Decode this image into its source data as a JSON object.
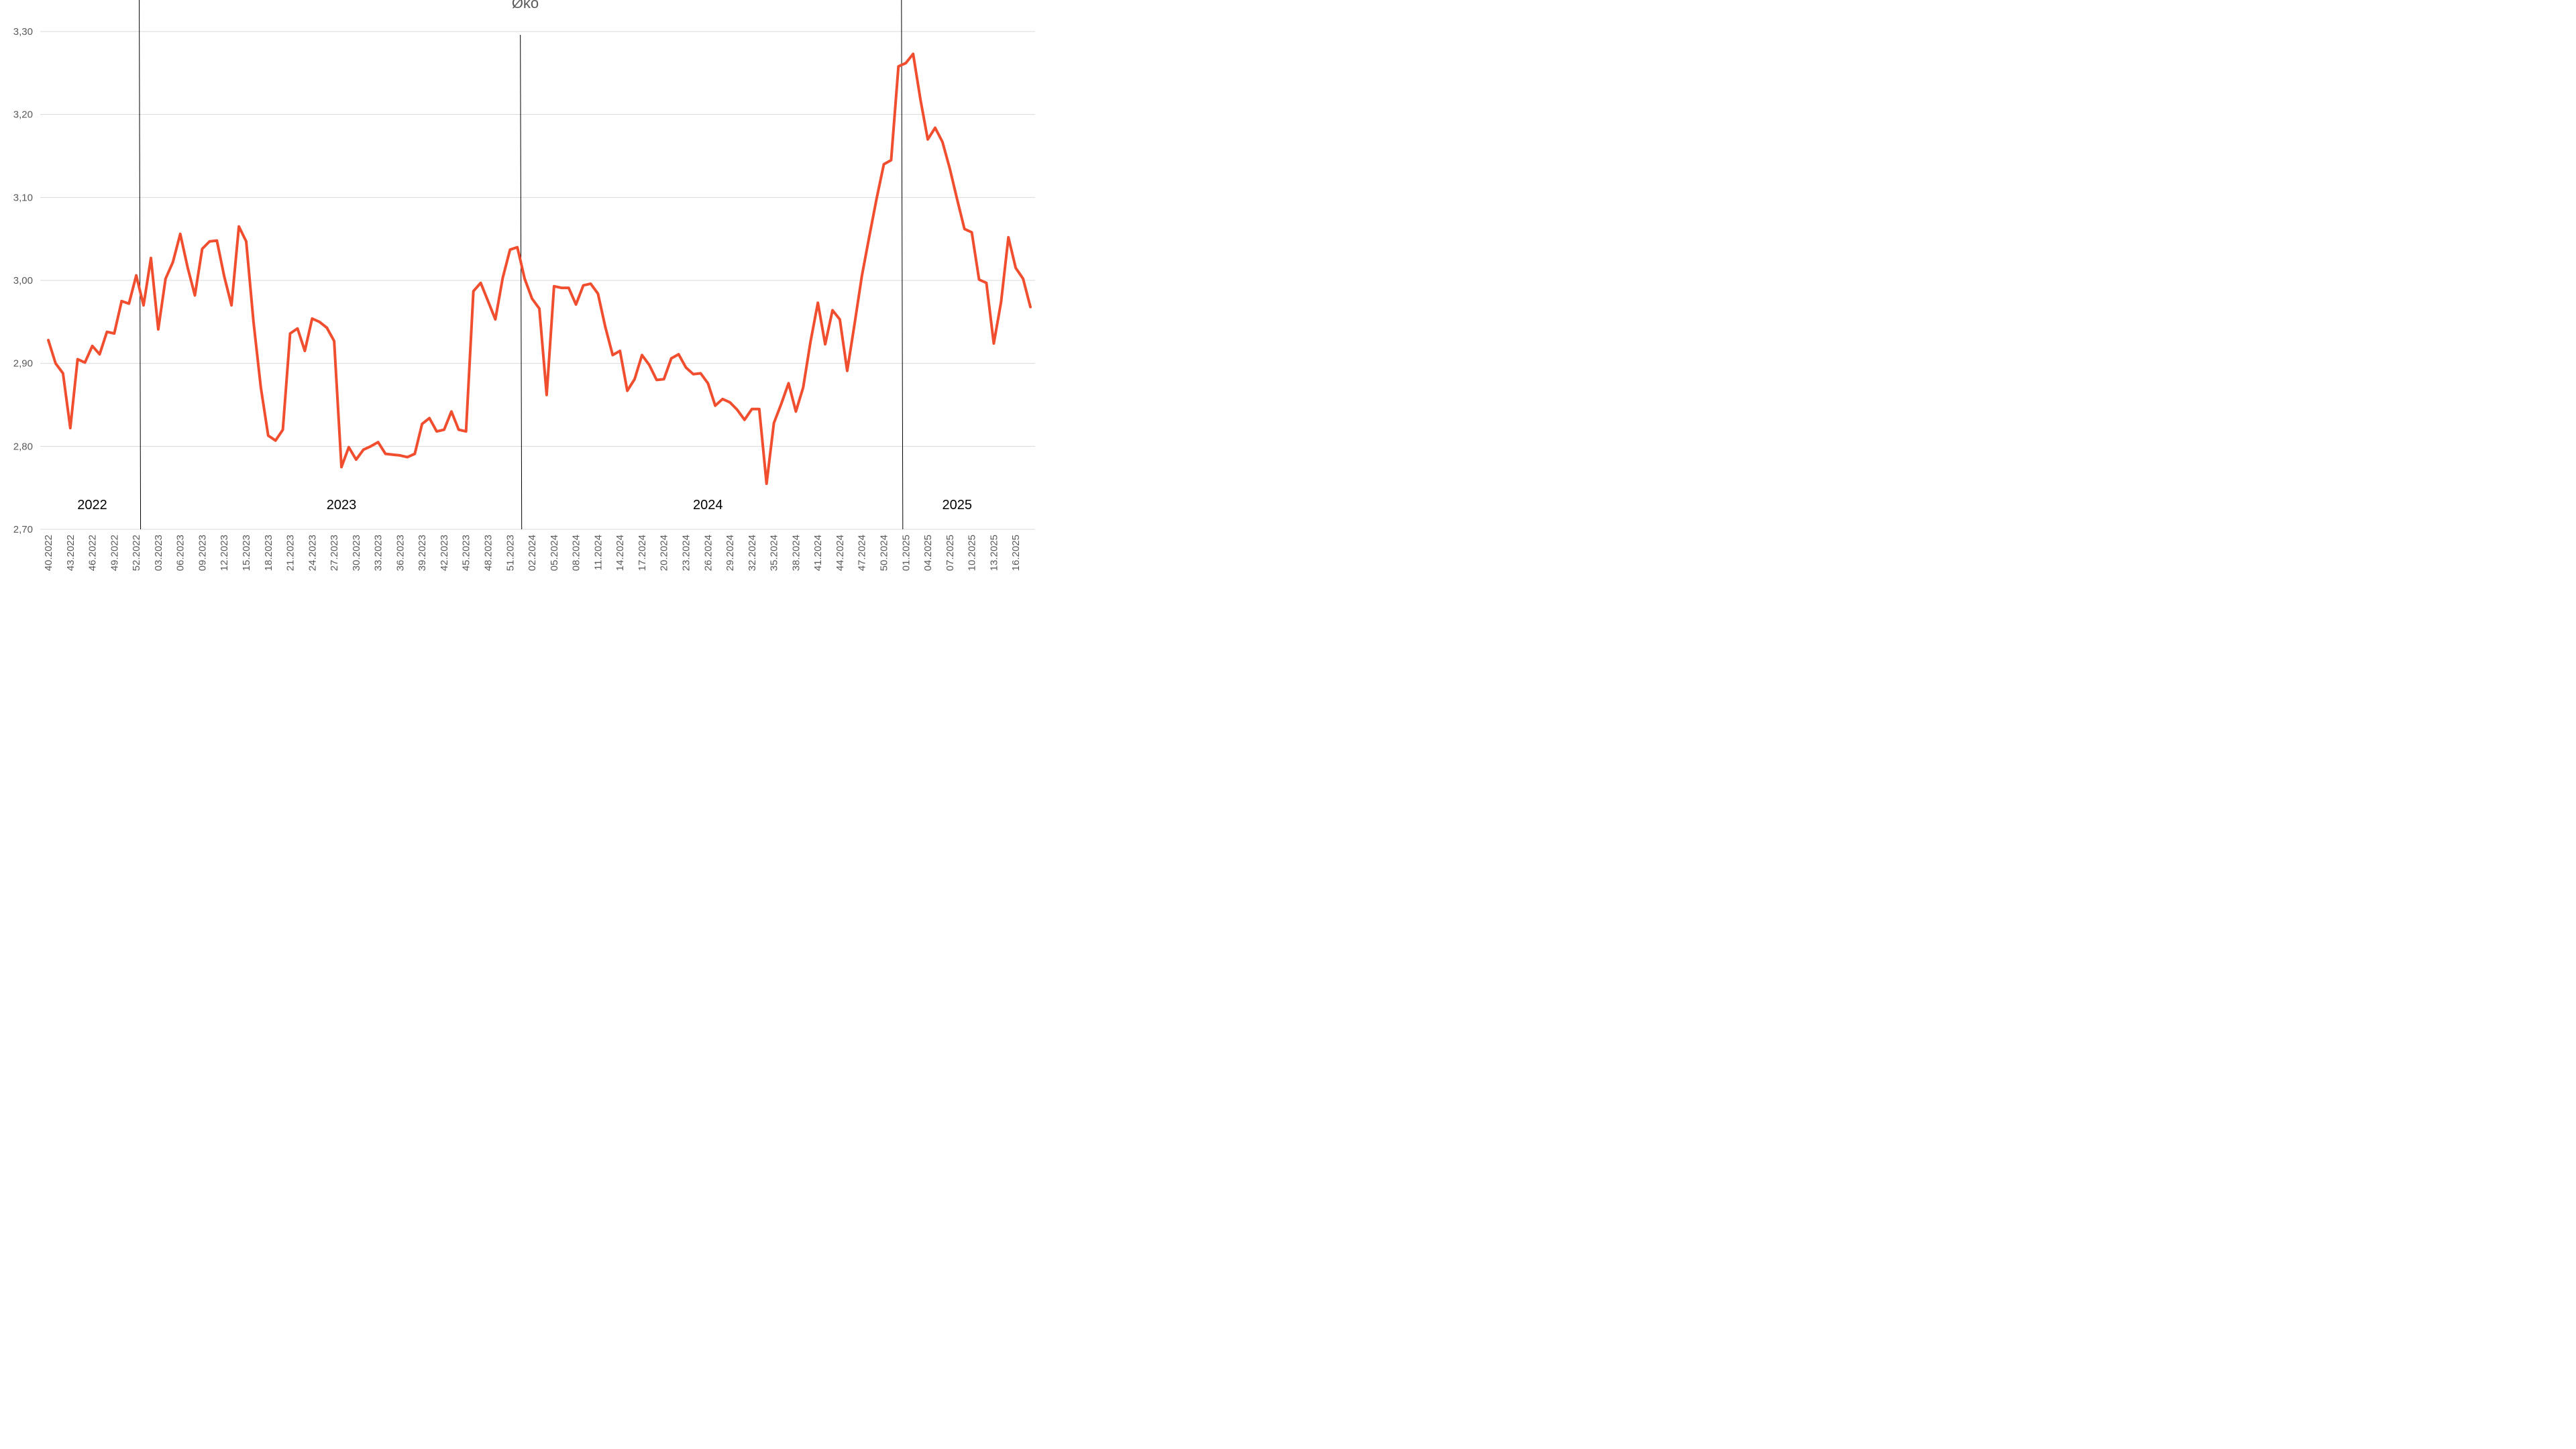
{
  "chart_data": {
    "type": "line",
    "title": "Øko",
    "ylim": [
      2.7,
      3.3
    ],
    "yticks": [
      "2,70",
      "2,80",
      "2,90",
      "3,00",
      "3,10",
      "3,20",
      "3,30"
    ],
    "grid": true,
    "colors": {
      "series": "#F04E2E",
      "grid": "#d9d9d9",
      "axis_text": "#595959",
      "divider": "#000000"
    },
    "x": [
      "40.2022",
      "41.2022",
      "42.2022",
      "43.2022",
      "44.2022",
      "45.2022",
      "46.2022",
      "47.2022",
      "48.2022",
      "49.2022",
      "50.2022",
      "51.2022",
      "52.2022",
      "01.2023",
      "02.2023",
      "03.2023",
      "04.2023",
      "05.2023",
      "06.2023",
      "07.2023",
      "08.2023",
      "09.2023",
      "10.2023",
      "11.2023",
      "12.2023",
      "13.2023",
      "14.2023",
      "15.2023",
      "16.2023",
      "17.2023",
      "18.2023",
      "19.2023",
      "20.2023",
      "21.2023",
      "22.2023",
      "23.2023",
      "24.2023",
      "25.2023",
      "26.2023",
      "27.2023",
      "28.2023",
      "29.2023",
      "30.2023",
      "31.2023",
      "32.2023",
      "33.2023",
      "34.2023",
      "35.2023",
      "36.2023",
      "37.2023",
      "38.2023",
      "39.2023",
      "40.2023",
      "41.2023",
      "42.2023",
      "43.2023",
      "44.2023",
      "45.2023",
      "46.2023",
      "47.2023",
      "48.2023",
      "49.2023",
      "50.2023",
      "51.2023",
      "52.2023",
      "01.2024",
      "02.2024",
      "03.2024",
      "04.2024",
      "05.2024",
      "06.2024",
      "07.2024",
      "08.2024",
      "09.2024",
      "10.2024",
      "11.2024",
      "12.2024",
      "13.2024",
      "14.2024",
      "15.2024",
      "16.2024",
      "17.2024",
      "18.2024",
      "19.2024",
      "20.2024",
      "21.2024",
      "22.2024",
      "23.2024",
      "24.2024",
      "25.2024",
      "26.2024",
      "27.2024",
      "28.2024",
      "29.2024",
      "30.2024",
      "31.2024",
      "32.2024",
      "33.2024",
      "34.2024",
      "35.2024",
      "36.2024",
      "37.2024",
      "38.2024",
      "39.2024",
      "40.2024",
      "41.2024",
      "42.2024",
      "43.2024",
      "44.2024",
      "45.2024",
      "46.2024",
      "47.2024",
      "48.2024",
      "49.2024",
      "50.2024",
      "51.2024",
      "52.2024",
      "01.2025",
      "02.2025",
      "03.2025",
      "04.2025",
      "05.2025",
      "06.2025",
      "07.2025",
      "08.2025",
      "09.2025",
      "10.2025",
      "11.2025",
      "12.2025",
      "13.2025",
      "14.2025",
      "15.2025",
      "16.2025",
      "17.2025",
      "18.2025"
    ],
    "tick_labels": [
      "40.2022",
      "43.2022",
      "46.2022",
      "49.2022",
      "52.2022",
      "03.2023",
      "06.2023",
      "09.2023",
      "12.2023",
      "15.2023",
      "18.2023",
      "21.2023",
      "24.2023",
      "27.2023",
      "30.2023",
      "33.2023",
      "36.2023",
      "39.2023",
      "42.2023",
      "45.2023",
      "48.2023",
      "51.2023",
      "02.2024",
      "05.2024",
      "08.2024",
      "11.2024",
      "14.2024",
      "17.2024",
      "20.2024",
      "23.2024",
      "26.2024",
      "29.2024",
      "32.2024",
      "35.2024",
      "38.2024",
      "41.2024",
      "44.2024",
      "47.2024",
      "50.2024",
      "01.2025",
      "04.2025",
      "07.2025",
      "10.2025",
      "13.2025",
      "16.2025"
    ],
    "series": [
      {
        "values": [
          2.928,
          2.9,
          2.888,
          2.822,
          2.905,
          2.901,
          2.921,
          2.911,
          2.938,
          2.936,
          2.975,
          2.972,
          3.006,
          2.97,
          3.027,
          2.941,
          3.002,
          3.022,
          3.056,
          3.016,
          2.982,
          3.038,
          3.047,
          3.048,
          3.005,
          2.97,
          3.065,
          3.047,
          2.95,
          2.871,
          2.813,
          2.807,
          2.82,
          2.936,
          2.942,
          2.915,
          2.954,
          2.95,
          2.943,
          2.927,
          2.775,
          2.799,
          2.784,
          2.796,
          2.8,
          2.805,
          2.791,
          2.79,
          2.789,
          2.787,
          2.791,
          2.827,
          2.834,
          2.818,
          2.82,
          2.842,
          2.82,
          2.818,
          2.987,
          2.997,
          2.975,
          2.953,
          3.003,
          3.037,
          3.04,
          3.002,
          2.978,
          2.966,
          2.862,
          2.993,
          2.991,
          2.991,
          2.971,
          2.994,
          2.996,
          2.984,
          2.944,
          2.91,
          2.915,
          2.867,
          2.881,
          2.91,
          2.898,
          2.88,
          2.881,
          2.906,
          2.911,
          2.895,
          2.887,
          2.888,
          2.876,
          2.849,
          2.857,
          2.853,
          2.844,
          2.832,
          2.845,
          2.845,
          2.755,
          2.828,
          2.851,
          2.876,
          2.842,
          2.871,
          2.926,
          2.973,
          2.923,
          2.964,
          2.953,
          2.891,
          2.947,
          3.005,
          3.052,
          3.098,
          3.14,
          3.145,
          3.258,
          3.262,
          3.273,
          3.218,
          3.17,
          3.184,
          3.167,
          3.135,
          3.098,
          3.062,
          3.058,
          3.001,
          2.997,
          2.924,
          2.974,
          3.052,
          3.015,
          3.002,
          2.968
        ]
      }
    ],
    "year_labels": [
      {
        "text": "2022",
        "at_week": "46.2022"
      },
      {
        "text": "2023",
        "at_week": "28.2023"
      },
      {
        "text": "2024",
        "at_week": "26.2024"
      },
      {
        "text": "2025",
        "at_week": "08.2025"
      }
    ],
    "year_dividers": [
      "52.2022",
      "52.2023",
      "52.2024"
    ]
  }
}
